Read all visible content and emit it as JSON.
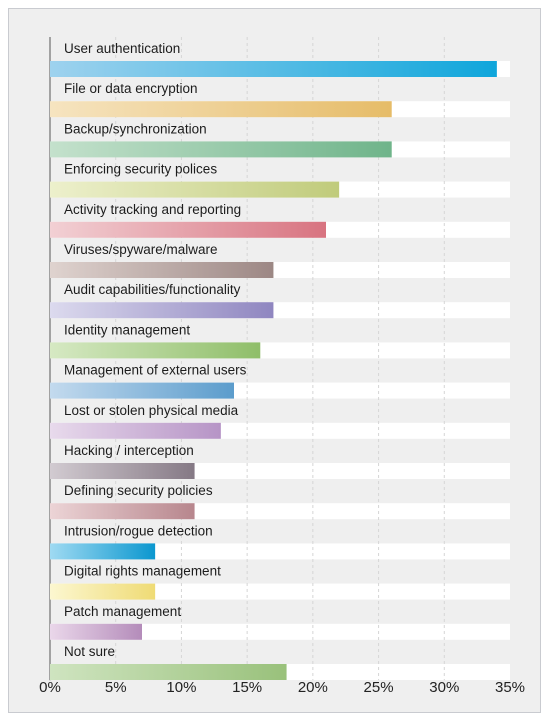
{
  "chart_data": {
    "type": "bar",
    "orientation": "horizontal",
    "title": "",
    "xlabel": "",
    "ylabel": "",
    "xlim": [
      0,
      35
    ],
    "x_tick_labels": [
      "0%",
      "5%",
      "10%",
      "15%",
      "20%",
      "25%",
      "30%",
      "35%"
    ],
    "grid": true,
    "categories": [
      "User authentication",
      "File or data encryption",
      "Backup/synchronization",
      "Enforcing security polices",
      "Activity tracking and reporting",
      "Viruses/spyware/malware",
      "Audit capabilities/functionality",
      "Identity management",
      "Management of external users",
      "Lost or stolen physical media",
      "Hacking / interception",
      "Defining security policies",
      "Intrusion/rogue detection",
      "Digital rights management",
      "Patch management",
      "Not sure"
    ],
    "values": [
      34,
      26,
      26,
      22,
      21,
      17,
      17,
      16,
      14,
      13,
      11,
      11,
      8,
      8,
      7,
      18
    ],
    "colors": [
      [
        "#9ed2ee",
        "#0fa6db"
      ],
      [
        "#f6e4c0",
        "#e6bc68"
      ],
      [
        "#c4e1cc",
        "#6fb48a"
      ],
      [
        "#edf0cc",
        "#c0cb7b"
      ],
      [
        "#f2d0d4",
        "#d87380"
      ],
      [
        "#dfd3cf",
        "#9c8784"
      ],
      [
        "#dcdaee",
        "#8f86c0"
      ],
      [
        "#d6e9c3",
        "#8fbe69"
      ],
      [
        "#c3daee",
        "#5b9ccc"
      ],
      [
        "#e8daec",
        "#b694c6"
      ],
      [
        "#d2cbd1",
        "#857985"
      ],
      [
        "#ecd4d6",
        "#b7868d"
      ],
      [
        "#9fdaf2",
        "#0b97cf"
      ],
      [
        "#fcf7d0",
        "#efdb75"
      ],
      [
        "#ead7ea",
        "#b48cba"
      ],
      [
        "#cfe4c0",
        "#99c17b"
      ]
    ]
  }
}
